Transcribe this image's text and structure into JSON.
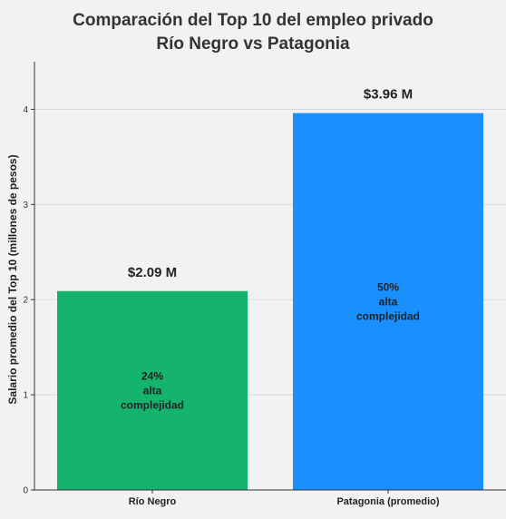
{
  "chart_data": {
    "type": "bar",
    "title_line1": "Comparación del Top 10 del empleo privado",
    "title_line2": "Río Negro vs Patagonia",
    "xlabel": "",
    "ylabel": "Salario promedio del Top 10 (millones de pesos)",
    "categories": [
      "Río Negro",
      "Patagonia (promedio)"
    ],
    "values": [
      2.09,
      3.96
    ],
    "value_labels": [
      "$2.09 M",
      "$3.96 M"
    ],
    "inner_labels": [
      [
        "24%",
        "alta",
        "complejidad"
      ],
      [
        "50%",
        "alta",
        "complejidad"
      ]
    ],
    "colors": [
      "#14b46f",
      "#1a90ff"
    ],
    "ylim": [
      0,
      4.5
    ],
    "yticks": [
      0,
      1,
      2,
      3,
      4
    ],
    "grid": true,
    "legend": "none"
  }
}
